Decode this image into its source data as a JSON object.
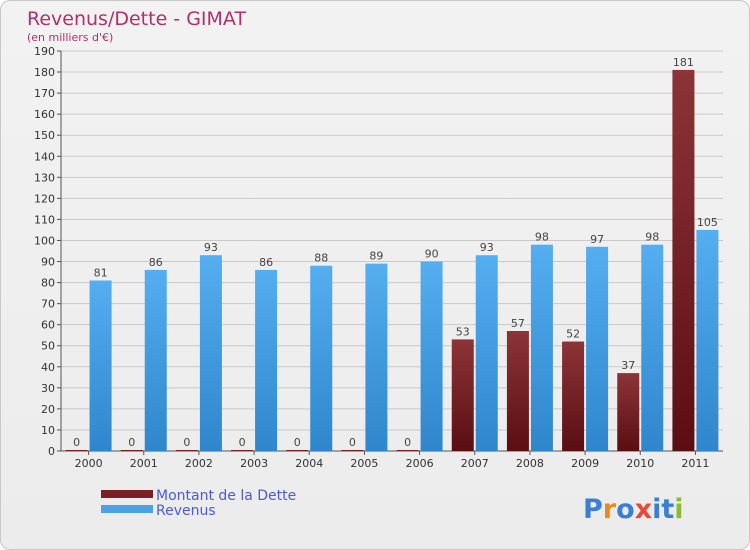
{
  "chart_data": {
    "type": "bar",
    "title": "Revenus/Dette - GIMAT",
    "subtitle": "(en milliers d'€)",
    "categories": [
      "2000",
      "2001",
      "2002",
      "2003",
      "2004",
      "2005",
      "2006",
      "2007",
      "2008",
      "2009",
      "2010",
      "2011"
    ],
    "series": [
      {
        "name": "Montant de la Dette",
        "values": [
          0,
          0,
          0,
          0,
          0,
          0,
          0,
          53,
          57,
          52,
          37,
          181
        ],
        "color": "#7a1f24"
      },
      {
        "name": "Revenus",
        "values": [
          81,
          86,
          93,
          86,
          88,
          89,
          90,
          93,
          98,
          97,
          98,
          105
        ],
        "color": "#4aa3e6"
      }
    ],
    "ylim": [
      0,
      190
    ],
    "yticks": [
      0,
      10,
      20,
      30,
      40,
      50,
      60,
      70,
      80,
      90,
      100,
      110,
      120,
      130,
      140,
      150,
      160,
      170,
      180,
      190
    ],
    "grid": true,
    "legend_position": "bottom-left"
  },
  "brand": {
    "letters": [
      "P",
      "r",
      "o",
      "x",
      "i",
      "t",
      "i"
    ],
    "colors": [
      "#3a7fd0",
      "#e98a1c",
      "#3a7fd0",
      "#e84a3a",
      "#3a7fd0",
      "#3a7fd0",
      "#8abd30"
    ]
  }
}
